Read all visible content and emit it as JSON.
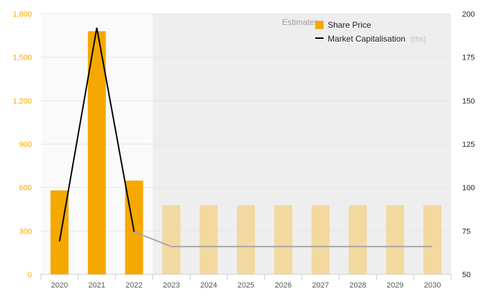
{
  "chart_data": {
    "type": "bar",
    "categories": [
      "2020",
      "2021",
      "2022",
      "2023",
      "2024",
      "2025",
      "2026",
      "2027",
      "2028",
      "2029",
      "2030"
    ],
    "series": [
      {
        "name": "Share Price",
        "axis": "left",
        "values": [
          580,
          1680,
          648,
          478,
          478,
          478,
          478,
          478,
          478,
          478,
          478
        ]
      },
      {
        "name": "Market Capitalisation",
        "axis": "right",
        "type": "line",
        "values": [
          69,
          192,
          74.5,
          66,
          66,
          66,
          66,
          66,
          66,
          66,
          66
        ]
      }
    ],
    "estimate_from_index": 3,
    "estimate_label": "Estimates",
    "rhs_suffix": "(rhs)",
    "left_axis": {
      "min": 0,
      "max": 1800,
      "ticks": [
        "0",
        "300",
        "600",
        "900",
        "1,200",
        "1,500",
        "1,800"
      ]
    },
    "right_axis": {
      "min": 50,
      "max": 200,
      "ticks": [
        "50",
        "75",
        "100",
        "125",
        "150",
        "175",
        "200"
      ]
    },
    "colors": {
      "bar": "#f5a800",
      "bar_estimate": "#f2d9a0",
      "line": "#000000",
      "line_estimate": "#a8a8a8",
      "left_tick": "#f5a800",
      "right_tick": "#222222",
      "estimate_bg": "#eeeeee",
      "plot_bg": "#fafafa"
    },
    "legend": {
      "position": "top-right"
    }
  }
}
